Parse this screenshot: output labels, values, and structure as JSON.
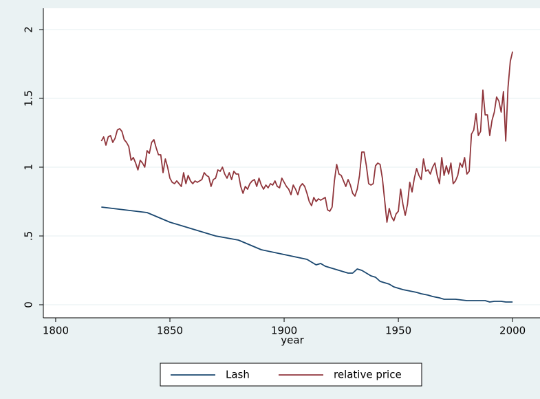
{
  "chart_data": {
    "type": "line",
    "x_label": "year",
    "xlim": [
      1794.6,
      2012.0
    ],
    "xticks": [
      1800,
      1850,
      1900,
      1950,
      2000
    ],
    "ylim": [
      -0.095,
      2.155
    ],
    "yticks": [
      0,
      {
        "value": 0.5,
        "label": ".5"
      },
      1,
      1.5,
      2
    ],
    "grid": true,
    "series": [
      {
        "name": "Lash",
        "color": "#1a476f",
        "x": [
          1820,
          1840,
          1850,
          1860,
          1870,
          1880,
          1890,
          1900,
          1910,
          1912,
          1914,
          1916,
          1918,
          1920,
          1922,
          1924,
          1926,
          1928,
          1930,
          1932,
          1934,
          1936,
          1938,
          1940,
          1942,
          1944,
          1946,
          1948,
          1950,
          1952,
          1955,
          1958,
          1960,
          1963,
          1965,
          1968,
          1970,
          1975,
          1980,
          1985,
          1988,
          1990,
          1992,
          1995,
          1997,
          2000
        ],
        "values": [
          0.71,
          0.67,
          0.6,
          0.55,
          0.5,
          0.47,
          0.4,
          0.365,
          0.33,
          0.31,
          0.29,
          0.3,
          0.28,
          0.27,
          0.26,
          0.25,
          0.24,
          0.23,
          0.23,
          0.26,
          0.25,
          0.23,
          0.21,
          0.2,
          0.17,
          0.16,
          0.15,
          0.13,
          0.12,
          0.11,
          0.1,
          0.09,
          0.08,
          0.07,
          0.06,
          0.05,
          0.04,
          0.04,
          0.03,
          0.03,
          0.03,
          0.02,
          0.025,
          0.025,
          0.02,
          0.02
        ]
      },
      {
        "name": "relative price",
        "color": "#90353b",
        "x": [
          1820,
          1821,
          1822,
          1823,
          1824,
          1825,
          1826,
          1827,
          1828,
          1829,
          1830,
          1831,
          1832,
          1833,
          1834,
          1835,
          1836,
          1837,
          1838,
          1839,
          1840,
          1841,
          1842,
          1843,
          1844,
          1845,
          1846,
          1847,
          1848,
          1849,
          1850,
          1851,
          1852,
          1853,
          1854,
          1855,
          1856,
          1857,
          1858,
          1859,
          1860,
          1861,
          1862,
          1863,
          1864,
          1865,
          1866,
          1867,
          1868,
          1869,
          1870,
          1871,
          1872,
          1873,
          1874,
          1875,
          1876,
          1877,
          1878,
          1879,
          1880,
          1881,
          1882,
          1883,
          1884,
          1885,
          1886,
          1887,
          1888,
          1889,
          1890,
          1891,
          1892,
          1893,
          1894,
          1895,
          1896,
          1897,
          1898,
          1899,
          1900,
          1901,
          1902,
          1903,
          1904,
          1905,
          1906,
          1907,
          1908,
          1909,
          1910,
          1911,
          1912,
          1913,
          1914,
          1915,
          1916,
          1917,
          1918,
          1919,
          1920,
          1921,
          1922,
          1923,
          1924,
          1925,
          1926,
          1927,
          1928,
          1929,
          1930,
          1931,
          1932,
          1933,
          1934,
          1935,
          1936,
          1937,
          1938,
          1939,
          1940,
          1941,
          1942,
          1943,
          1944,
          1945,
          1946,
          1947,
          1948,
          1949,
          1950,
          1951,
          1952,
          1953,
          1954,
          1955,
          1956,
          1957,
          1958,
          1959,
          1960,
          1961,
          1962,
          1963,
          1964,
          1965,
          1966,
          1967,
          1968,
          1969,
          1970,
          1971,
          1972,
          1973,
          1974,
          1975,
          1976,
          1977,
          1978,
          1979,
          1980,
          1981,
          1982,
          1983,
          1984,
          1985,
          1986,
          1987,
          1988,
          1989,
          1990,
          1991,
          1992,
          1993,
          1994,
          1995,
          1996,
          1997,
          1998,
          1999,
          2000
        ],
        "values": [
          1.19,
          1.22,
          1.16,
          1.22,
          1.23,
          1.18,
          1.21,
          1.27,
          1.28,
          1.26,
          1.2,
          1.18,
          1.15,
          1.05,
          1.07,
          1.03,
          0.98,
          1.05,
          1.03,
          1.0,
          1.12,
          1.1,
          1.18,
          1.2,
          1.14,
          1.09,
          1.09,
          0.96,
          1.06,
          1.0,
          0.92,
          0.89,
          0.88,
          0.9,
          0.88,
          0.86,
          0.96,
          0.88,
          0.94,
          0.9,
          0.88,
          0.9,
          0.89,
          0.9,
          0.91,
          0.96,
          0.94,
          0.93,
          0.86,
          0.91,
          0.92,
          0.98,
          0.97,
          1.0,
          0.95,
          0.92,
          0.96,
          0.91,
          0.97,
          0.95,
          0.95,
          0.86,
          0.81,
          0.86,
          0.84,
          0.88,
          0.9,
          0.91,
          0.86,
          0.92,
          0.87,
          0.84,
          0.87,
          0.85,
          0.88,
          0.87,
          0.9,
          0.86,
          0.85,
          0.92,
          0.89,
          0.86,
          0.84,
          0.8,
          0.87,
          0.84,
          0.8,
          0.86,
          0.88,
          0.86,
          0.81,
          0.75,
          0.72,
          0.78,
          0.75,
          0.77,
          0.76,
          0.77,
          0.78,
          0.69,
          0.68,
          0.71,
          0.9,
          1.02,
          0.95,
          0.94,
          0.9,
          0.86,
          0.91,
          0.87,
          0.81,
          0.79,
          0.84,
          0.94,
          1.11,
          1.11,
          1.01,
          0.88,
          0.87,
          0.88,
          1.01,
          1.03,
          1.02,
          0.92,
          0.76,
          0.6,
          0.7,
          0.64,
          0.61,
          0.66,
          0.68,
          0.84,
          0.73,
          0.65,
          0.73,
          0.89,
          0.82,
          0.92,
          0.99,
          0.94,
          0.91,
          1.06,
          0.97,
          0.98,
          0.95,
          1.0,
          1.03,
          0.94,
          0.88,
          1.07,
          0.94,
          1.01,
          0.95,
          1.03,
          0.88,
          0.9,
          0.94,
          1.03,
          1.0,
          1.07,
          0.95,
          0.97,
          1.24,
          1.27,
          1.39,
          1.23,
          1.26,
          1.56,
          1.38,
          1.38,
          1.23,
          1.34,
          1.4,
          1.51,
          1.48,
          1.4,
          1.55,
          1.19,
          1.58,
          1.77,
          1.84
        ]
      }
    ]
  }
}
